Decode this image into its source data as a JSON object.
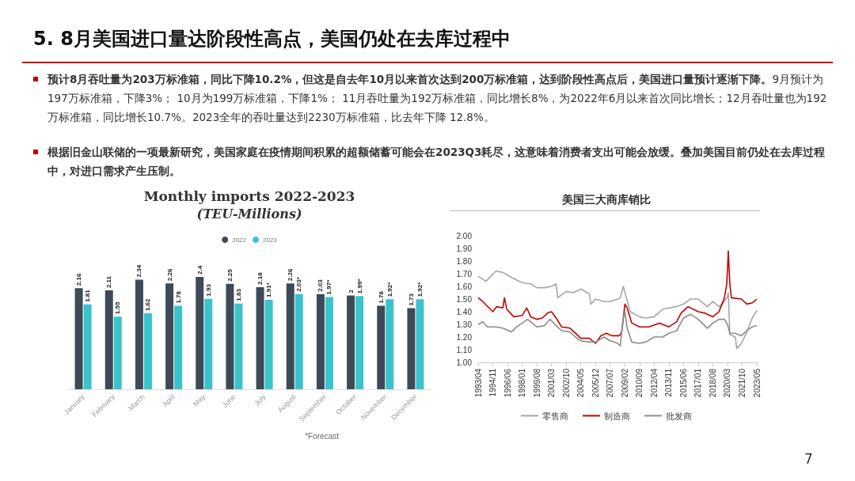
{
  "chart_data": [
    {
      "type": "other",
      "title": "5. 8月美国进口量达阶段性高点，美国仍处在去库过程中",
      "annotations": [
        "预计8月吞吐量为203万标准箱，同比下降10.2%，但这是自去年10月以来首次达到200万标准箱，达到阶段性高点后，美国进口量预计逐渐下降。",
        "9月预计为197万标准箱，下降3%；  10月为199万标准箱，下降1%；  11月吞吐量为192万标准箱，同比增长8%，为2022年6月以来首次同比增长；12月吞吐量也为192万标准箱，同比增长10.7%。2023全年的吞吐量达到2230万标准箱，比去年下降 12.8%。",
        "根据旧金山联储的一项最新研究，美国家庭在疫情期间积累的超额储蓄可能会在2023Q3耗尽，这意味着消费者支出可能会放缓。叠加美国目前仍处在去库过程中，对进口需求产生压制。",
        "7"
      ]
    },
    {
      "type": "bar",
      "title": "Monthly imports 2022-2023",
      "subtitle": "(TEU-Millions)",
      "legend": "top",
      "annotations": [
        "*Forecast"
      ],
      "categories": [
        "January",
        "February",
        "March",
        "April",
        "May",
        "June",
        "July",
        "August",
        "September",
        "October",
        "November",
        "December"
      ],
      "series": [
        {
          "name": "2022",
          "color": "#3d4a58",
          "values": [
            2.16,
            2.11,
            2.34,
            2.26,
            2.4,
            2.25,
            2.18,
            2.26,
            2.03,
            2,
            1.78,
            1.73
          ],
          "value_labels": [
            "2.16",
            "2.11",
            "2.34",
            "2.26",
            "2.4",
            "2.25",
            "2.18",
            "2.26",
            "2.03",
            "2",
            "1.78",
            "1.73"
          ]
        },
        {
          "name": "2023",
          "color": "#3bc3cc",
          "values": [
            1.81,
            1.55,
            1.62,
            1.78,
            1.93,
            1.83,
            1.91,
            2.03,
            1.97,
            1.99,
            1.92,
            1.92
          ],
          "value_labels": [
            "1.81",
            "1.55",
            "1.62",
            "1.78",
            "1.93",
            "1.83",
            "1.91*",
            "2.03*",
            "1.97*",
            "1.99*",
            "1.92*",
            "1.92*"
          ]
        }
      ]
    },
    {
      "type": "line",
      "title": "美国三大商库销比",
      "legend": "bottom",
      "grid": false,
      "marker": "none",
      "line_style": "solid",
      "xlim": [
        "1993-04",
        "2023-05"
      ],
      "xticks": [
        {
          "value": "1993-04",
          "label": "1993/04"
        },
        {
          "value": "1994-11",
          "label": "1994/11"
        },
        {
          "value": "1996-06",
          "label": "1996/06"
        },
        {
          "value": "1998-01",
          "label": "1998/01"
        },
        {
          "value": "1999-08",
          "label": "1999/08"
        },
        {
          "value": "2001-03",
          "label": "2001/03"
        },
        {
          "value": "2002-10",
          "label": "2002/10"
        },
        {
          "value": "2004-05",
          "label": "2004/05"
        },
        {
          "value": "2005-12",
          "label": "2005/12"
        },
        {
          "value": "2007-07",
          "label": "2007/07"
        },
        {
          "value": "2009-02",
          "label": "2009/02"
        },
        {
          "value": "2010-09",
          "label": "2010/09"
        },
        {
          "value": "2012-04",
          "label": "2012/04"
        },
        {
          "value": "2013-11",
          "label": "2013/11"
        },
        {
          "value": "2015-06",
          "label": "2015/06"
        },
        {
          "value": "2017-01",
          "label": "2017/01"
        },
        {
          "value": "2018-08",
          "label": "2018/08"
        },
        {
          "value": "2020-03",
          "label": "2020/03"
        },
        {
          "value": "2021-10",
          "label": "2021/10"
        },
        {
          "value": "2023-05",
          "label": "2023/05"
        }
      ],
      "ylim": [
        1,
        2
      ],
      "yticks": [
        {
          "value": 1,
          "label": "1.00"
        },
        {
          "value": 1.1,
          "label": "1.10"
        },
        {
          "value": 1.2,
          "label": "1.20"
        },
        {
          "value": 1.3,
          "label": "1.30"
        },
        {
          "value": 1.4,
          "label": "1.40"
        },
        {
          "value": 1.5,
          "label": "1.50"
        },
        {
          "value": 1.6,
          "label": "1.60"
        },
        {
          "value": 1.7,
          "label": "1.70"
        },
        {
          "value": 1.8,
          "label": "1.80"
        },
        {
          "value": 1.9,
          "label": "1.90"
        },
        {
          "value": 2,
          "label": "2.00"
        }
      ],
      "series": [
        {
          "name": "零售商",
          "color": "#a6a6a6",
          "x": [
            "1993-04",
            "1994-02",
            "1995-03",
            "1995-12",
            "1996-11",
            "1998-01",
            "1998-12",
            "1999-08",
            "2000-06",
            "2001-03",
            "2001-09",
            "2001-11",
            "2002-10",
            "2003-07",
            "2004-05",
            "2005-04",
            "2005-06",
            "2005-12",
            "2006-11",
            "2007-07",
            "2008-05",
            "2008-08",
            "2008-12",
            "2009-04",
            "2009-09",
            "2010-09",
            "2011-05",
            "2012-04",
            "2013-03",
            "2013-11",
            "2014-09",
            "2015-06",
            "2016-03",
            "2017-01",
            "2018-01",
            "2018-08",
            "2019-04",
            "2019-11",
            "2020-03",
            "2020-04",
            "2020-06",
            "2021-01",
            "2021-03",
            "2021-09",
            "2022-04",
            "2022-11",
            "2023-05"
          ],
          "values": [
            1.68,
            1.64,
            1.72,
            1.71,
            1.67,
            1.63,
            1.62,
            1.59,
            1.59,
            1.6,
            1.62,
            1.51,
            1.56,
            1.55,
            1.58,
            1.54,
            1.46,
            1.5,
            1.48,
            1.48,
            1.5,
            1.51,
            1.6,
            1.51,
            1.4,
            1.36,
            1.35,
            1.36,
            1.42,
            1.43,
            1.44,
            1.46,
            1.5,
            1.5,
            1.44,
            1.48,
            1.44,
            1.48,
            1.52,
            1.55,
            1.22,
            1.2,
            1.11,
            1.15,
            1.24,
            1.35,
            1.41
          ]
        },
        {
          "name": "制造商",
          "color": "#c00000",
          "x": [
            "1993-04",
            "1993-10",
            "1994-11",
            "1995-04",
            "1995-12",
            "1996-02",
            "1996-05",
            "1997-02",
            "1998-01",
            "1998-07",
            "1998-12",
            "1999-08",
            "2000-03",
            "2000-10",
            "2001-03",
            "2001-09",
            "2002-04",
            "2003-03",
            "2003-10",
            "2004-05",
            "2005-04",
            "2005-12",
            "2006-07",
            "2007-02",
            "2007-09",
            "2008-07",
            "2008-10",
            "2009-02",
            "2009-05",
            "2009-11",
            "2010-09",
            "2011-09",
            "2012-11",
            "2013-11",
            "2014-09",
            "2015-03",
            "2015-12",
            "2017-01",
            "2017-09",
            "2018-08",
            "2019-04",
            "2019-11",
            "2020-02",
            "2020-04",
            "2020-06",
            "2020-08",
            "2021-09",
            "2022-04",
            "2022-11",
            "2023-05"
          ],
          "values": [
            1.51,
            1.48,
            1.4,
            1.44,
            1.43,
            1.51,
            1.42,
            1.36,
            1.37,
            1.43,
            1.36,
            1.34,
            1.35,
            1.39,
            1.4,
            1.35,
            1.28,
            1.27,
            1.23,
            1.19,
            1.19,
            1.15,
            1.21,
            1.23,
            1.21,
            1.21,
            1.24,
            1.46,
            1.43,
            1.31,
            1.28,
            1.28,
            1.31,
            1.28,
            1.32,
            1.39,
            1.44,
            1.4,
            1.39,
            1.36,
            1.4,
            1.51,
            1.62,
            1.88,
            1.62,
            1.51,
            1.5,
            1.46,
            1.47,
            1.5
          ]
        },
        {
          "name": "批发商",
          "color": "#8c8c8c",
          "x": [
            "1993-04",
            "1993-10",
            "1994-04",
            "1995-03",
            "1995-12",
            "1996-11",
            "1997-06",
            "1998-08",
            "1999-08",
            "2000-06",
            "2001-01",
            "2001-09",
            "2002-04",
            "2003-03",
            "2003-10",
            "2004-05",
            "2005-04",
            "2005-12",
            "2006-11",
            "2007-07",
            "2008-05",
            "2008-08",
            "2008-12",
            "2009-02",
            "2009-05",
            "2009-11",
            "2010-09",
            "2011-05",
            "2012-04",
            "2013-03",
            "2013-11",
            "2014-09",
            "2015-06",
            "2016-03",
            "2017-01",
            "2018-01",
            "2018-08",
            "2019-04",
            "2019-11",
            "2020-03",
            "2020-06",
            "2021-01",
            "2021-09",
            "2022-04",
            "2022-11",
            "2023-05"
          ],
          "values": [
            1.3,
            1.32,
            1.28,
            1.28,
            1.27,
            1.24,
            1.28,
            1.34,
            1.28,
            1.29,
            1.34,
            1.29,
            1.25,
            1.24,
            1.2,
            1.17,
            1.16,
            1.16,
            1.2,
            1.17,
            1.15,
            1.13,
            1.35,
            1.4,
            1.27,
            1.16,
            1.15,
            1.16,
            1.2,
            1.2,
            1.23,
            1.25,
            1.35,
            1.38,
            1.34,
            1.27,
            1.31,
            1.34,
            1.34,
            1.3,
            1.23,
            1.23,
            1.21,
            1.25,
            1.28,
            1.29
          ]
        }
      ]
    }
  ]
}
